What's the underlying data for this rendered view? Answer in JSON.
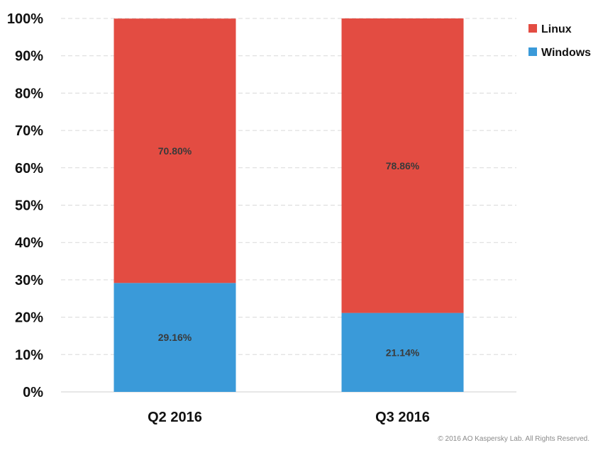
{
  "chart_data": {
    "type": "bar",
    "stacked": true,
    "categories": [
      "Q2 2016",
      "Q3 2016"
    ],
    "series": [
      {
        "name": "Windows",
        "values": [
          29.16,
          21.14
        ],
        "labels": [
          "29.16%",
          "21.14%"
        ],
        "color": "#3a9ad9"
      },
      {
        "name": "Linux",
        "values": [
          70.8,
          78.86
        ],
        "labels": [
          "70.80%",
          "78.86%"
        ],
        "color": "#e34c42"
      }
    ],
    "ylim": [
      0,
      100
    ],
    "yticks": [
      "0%",
      "10%",
      "20%",
      "30%",
      "40%",
      "50%",
      "60%",
      "70%",
      "80%",
      "90%",
      "100%"
    ],
    "grid": true,
    "legend_position": "top-right",
    "legend": [
      {
        "label": "Linux",
        "color": "#e34c42"
      },
      {
        "label": "Windows",
        "color": "#3a9ad9"
      }
    ]
  },
  "footer": {
    "copyright": "© 2016 AO Kaspersky Lab. All Rights Reserved."
  }
}
